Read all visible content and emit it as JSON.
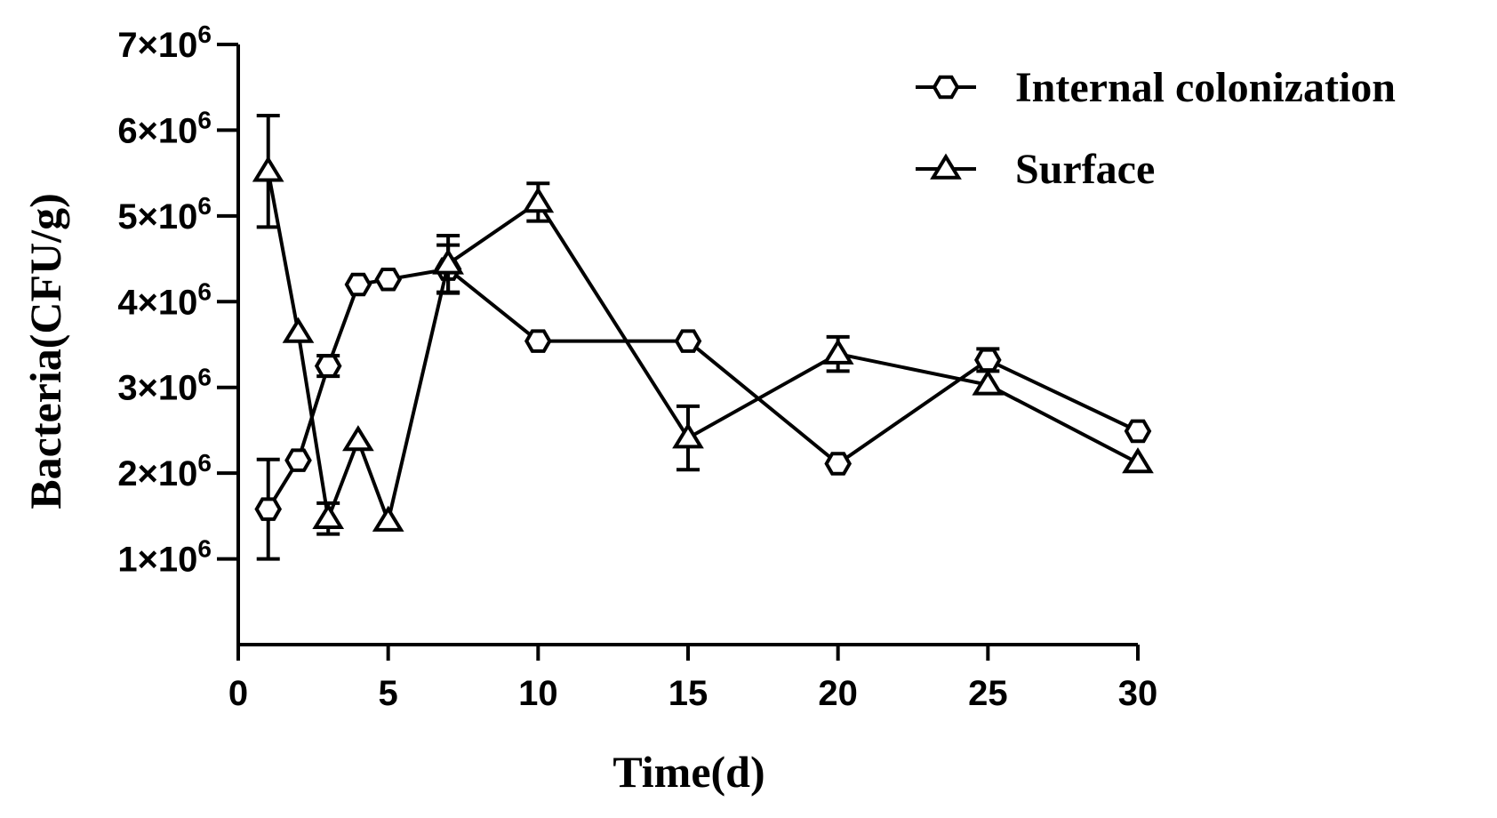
{
  "chart_data": {
    "type": "line",
    "title": "",
    "xlabel": "Time(d)",
    "ylabel": "Bacteria(CFU/g)",
    "xlim": [
      0,
      30
    ],
    "ylim": [
      0,
      7000000
    ],
    "x_ticks": [
      0,
      5,
      10,
      15,
      20,
      25,
      30
    ],
    "x_tick_labels": [
      "0",
      "5",
      "10",
      "15",
      "20",
      "25",
      "30"
    ],
    "y_ticks": [
      1000000,
      2000000,
      3000000,
      4000000,
      5000000,
      6000000,
      7000000
    ],
    "y_tick_base": [
      "1×10",
      "2×10",
      "3×10",
      "4×10",
      "5×10",
      "6×10",
      "7×10"
    ],
    "y_tick_exp": "6",
    "grid": false,
    "legend_position": "top-right",
    "series": [
      {
        "name": "Internal colonization",
        "marker": "hexagon",
        "x": [
          1,
          2,
          3,
          4,
          5,
          7,
          10,
          15,
          20,
          25,
          30
        ],
        "values": [
          1580000,
          2150000,
          3250000,
          4200000,
          4260000,
          4380000,
          3540000,
          3540000,
          2110000,
          3320000,
          2490000
        ],
        "error": [
          580000,
          0,
          120000,
          0,
          0,
          280000,
          0,
          0,
          0,
          130000,
          0
        ]
      },
      {
        "name": "Surface",
        "marker": "triangle",
        "x": [
          1,
          2,
          3,
          4,
          5,
          7,
          10,
          15,
          20,
          25,
          30
        ],
        "values": [
          5520000,
          3640000,
          1470000,
          2380000,
          1440000,
          4440000,
          5160000,
          2410000,
          3390000,
          3030000,
          2120000
        ],
        "error": [
          650000,
          0,
          180000,
          0,
          0,
          330000,
          220000,
          370000,
          200000,
          0,
          0
        ]
      }
    ]
  }
}
